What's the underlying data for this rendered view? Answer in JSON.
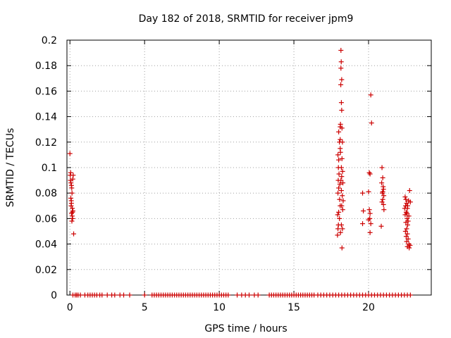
{
  "chart_data": {
    "type": "scatter",
    "title": "Day 182 of 2018, SRMTID for receiver jpm9",
    "xlabel": "GPS time / hours",
    "ylabel": "SRMTID / TECUs",
    "xlim": [
      -0.2,
      24.2
    ],
    "ylim": [
      0,
      0.2
    ],
    "xticks": [
      0,
      5,
      10,
      15,
      20
    ],
    "xtick_labels": [
      "0",
      "5",
      "10",
      "15",
      "20"
    ],
    "yticks": [
      0,
      0.02,
      0.04,
      0.06,
      0.08,
      0.1,
      0.12,
      0.14,
      0.16,
      0.18,
      0.2
    ],
    "ytick_labels": [
      "0",
      "0.02",
      "0.04",
      "0.06",
      "0.08",
      "0.1",
      "0.12",
      "0.14",
      "0.16",
      "0.18",
      "0.2"
    ],
    "grid": true,
    "marker": "+",
    "color": "#cc0000",
    "series": [
      {
        "name": "SRMTID",
        "points": [
          [
            0.0,
            0.111
          ],
          [
            0.02,
            0.094
          ],
          [
            0.05,
            0.096
          ],
          [
            0.07,
            0.088
          ],
          [
            0.1,
            0.086
          ],
          [
            0.04,
            0.09
          ],
          [
            0.12,
            0.084
          ],
          [
            0.06,
            0.076
          ],
          [
            0.1,
            0.072
          ],
          [
            0.14,
            0.08
          ],
          [
            0.08,
            0.07
          ],
          [
            0.16,
            0.068
          ],
          [
            0.11,
            0.064
          ],
          [
            0.18,
            0.06
          ],
          [
            0.13,
            0.058
          ],
          [
            0.2,
            0.066
          ],
          [
            0.15,
            0.062
          ],
          [
            0.22,
            0.094
          ],
          [
            0.19,
            0.091
          ],
          [
            0.25,
            0.048
          ],
          [
            0.09,
            0.074
          ],
          [
            0.17,
            0.065
          ],
          [
            18.0,
            0.128
          ],
          [
            18.05,
            0.12
          ],
          [
            17.95,
            0.11
          ],
          [
            18.1,
            0.115
          ],
          [
            17.98,
            0.1
          ],
          [
            18.02,
            0.095
          ],
          [
            17.97,
            0.09
          ],
          [
            18.08,
            0.087
          ],
          [
            18.0,
            0.084
          ],
          [
            17.95,
            0.08
          ],
          [
            18.06,
            0.075
          ],
          [
            18.1,
            0.07
          ],
          [
            18.0,
            0.065
          ],
          [
            17.93,
            0.063
          ],
          [
            18.05,
            0.06
          ],
          [
            17.98,
            0.055
          ],
          [
            17.95,
            0.052
          ],
          [
            18.12,
            0.049
          ],
          [
            17.92,
            0.047
          ],
          [
            18.15,
            0.192
          ],
          [
            18.17,
            0.183
          ],
          [
            18.15,
            0.178
          ],
          [
            18.2,
            0.169
          ],
          [
            18.14,
            0.165
          ],
          [
            18.18,
            0.151
          ],
          [
            18.2,
            0.145
          ],
          [
            18.12,
            0.134
          ],
          [
            18.22,
            0.131
          ],
          [
            18.1,
            0.122
          ],
          [
            18.25,
            0.12
          ],
          [
            18.12,
            0.112
          ],
          [
            18.22,
            0.107
          ],
          [
            18.18,
            0.1
          ],
          [
            18.26,
            0.097
          ],
          [
            18.2,
            0.093
          ],
          [
            18.15,
            0.09
          ],
          [
            18.28,
            0.088
          ],
          [
            18.18,
            0.082
          ],
          [
            18.24,
            0.078
          ],
          [
            18.3,
            0.074
          ],
          [
            18.2,
            0.07
          ],
          [
            18.27,
            0.067
          ],
          [
            18.18,
            0.055
          ],
          [
            18.25,
            0.052
          ],
          [
            18.22,
            0.037
          ],
          [
            18.1,
            0.132
          ],
          [
            18.0,
            0.106
          ],
          [
            19.6,
            0.08
          ],
          [
            19.65,
            0.066
          ],
          [
            19.6,
            0.056
          ],
          [
            20.05,
            0.096
          ],
          [
            20.1,
            0.095
          ],
          [
            20.0,
            0.081
          ],
          [
            20.05,
            0.067
          ],
          [
            20.1,
            0.064
          ],
          [
            20.0,
            0.059
          ],
          [
            20.15,
            0.056
          ],
          [
            20.1,
            0.049
          ],
          [
            20.15,
            0.157
          ],
          [
            20.2,
            0.135
          ],
          [
            20.08,
            0.06
          ],
          [
            20.9,
            0.1
          ],
          [
            20.95,
            0.092
          ],
          [
            20.88,
            0.088
          ],
          [
            21.0,
            0.083
          ],
          [
            20.92,
            0.08
          ],
          [
            21.02,
            0.078
          ],
          [
            20.95,
            0.075
          ],
          [
            20.9,
            0.073
          ],
          [
            21.0,
            0.071
          ],
          [
            21.03,
            0.067
          ],
          [
            20.95,
            0.081
          ],
          [
            20.85,
            0.054
          ],
          [
            20.98,
            0.085
          ],
          [
            22.45,
            0.077
          ],
          [
            22.5,
            0.075
          ],
          [
            22.55,
            0.072
          ],
          [
            22.48,
            0.07
          ],
          [
            22.6,
            0.068
          ],
          [
            22.52,
            0.065
          ],
          [
            22.45,
            0.063
          ],
          [
            22.58,
            0.06
          ],
          [
            22.5,
            0.057
          ],
          [
            22.62,
            0.055
          ],
          [
            22.55,
            0.052
          ],
          [
            22.47,
            0.05
          ],
          [
            22.6,
            0.048
          ],
          [
            22.52,
            0.046
          ],
          [
            22.65,
            0.044
          ],
          [
            22.55,
            0.042
          ],
          [
            22.7,
            0.04
          ],
          [
            22.6,
            0.038
          ],
          [
            22.72,
            0.037
          ],
          [
            22.75,
            0.082
          ],
          [
            22.68,
            0.074
          ],
          [
            22.62,
            0.07
          ],
          [
            22.58,
            0.064
          ],
          [
            22.7,
            0.062
          ],
          [
            22.65,
            0.058
          ],
          [
            22.78,
            0.039
          ],
          [
            22.8,
            0.073
          ],
          [
            22.42,
            0.068
          ]
        ],
        "zero_x": [
          0.2,
          0.35,
          0.45,
          0.55,
          0.7,
          1.0,
          1.2,
          1.35,
          1.5,
          1.65,
          1.8,
          2.0,
          2.15,
          2.5,
          2.8,
          3.0,
          3.35,
          3.6,
          4.0,
          5.0,
          5.5,
          5.65,
          5.8,
          5.95,
          6.1,
          6.25,
          6.4,
          6.55,
          6.7,
          6.85,
          7.0,
          7.15,
          7.3,
          7.45,
          7.6,
          7.75,
          7.9,
          8.05,
          8.2,
          8.35,
          8.5,
          8.65,
          8.8,
          8.95,
          9.1,
          9.25,
          9.4,
          9.55,
          9.7,
          9.85,
          10.0,
          10.15,
          10.3,
          10.45,
          10.6,
          11.2,
          11.5,
          11.75,
          12.0,
          12.35,
          12.6,
          13.35,
          13.5,
          13.65,
          13.8,
          13.95,
          14.1,
          14.25,
          14.4,
          14.55,
          14.7,
          14.85,
          15.0,
          15.15,
          15.3,
          15.45,
          15.6,
          15.75,
          15.9,
          16.05,
          16.2,
          16.35,
          16.6,
          16.8,
          17.0,
          17.2,
          17.4,
          17.6,
          17.8,
          18.0,
          18.2,
          18.4,
          18.6,
          18.8,
          19.0,
          19.2,
          19.4,
          19.6,
          19.8,
          20.0,
          20.2,
          20.4,
          20.6,
          20.8,
          21.0,
          21.2,
          21.4,
          21.6,
          21.8,
          22.0,
          22.2,
          22.4,
          22.6,
          22.8
        ]
      }
    ]
  }
}
